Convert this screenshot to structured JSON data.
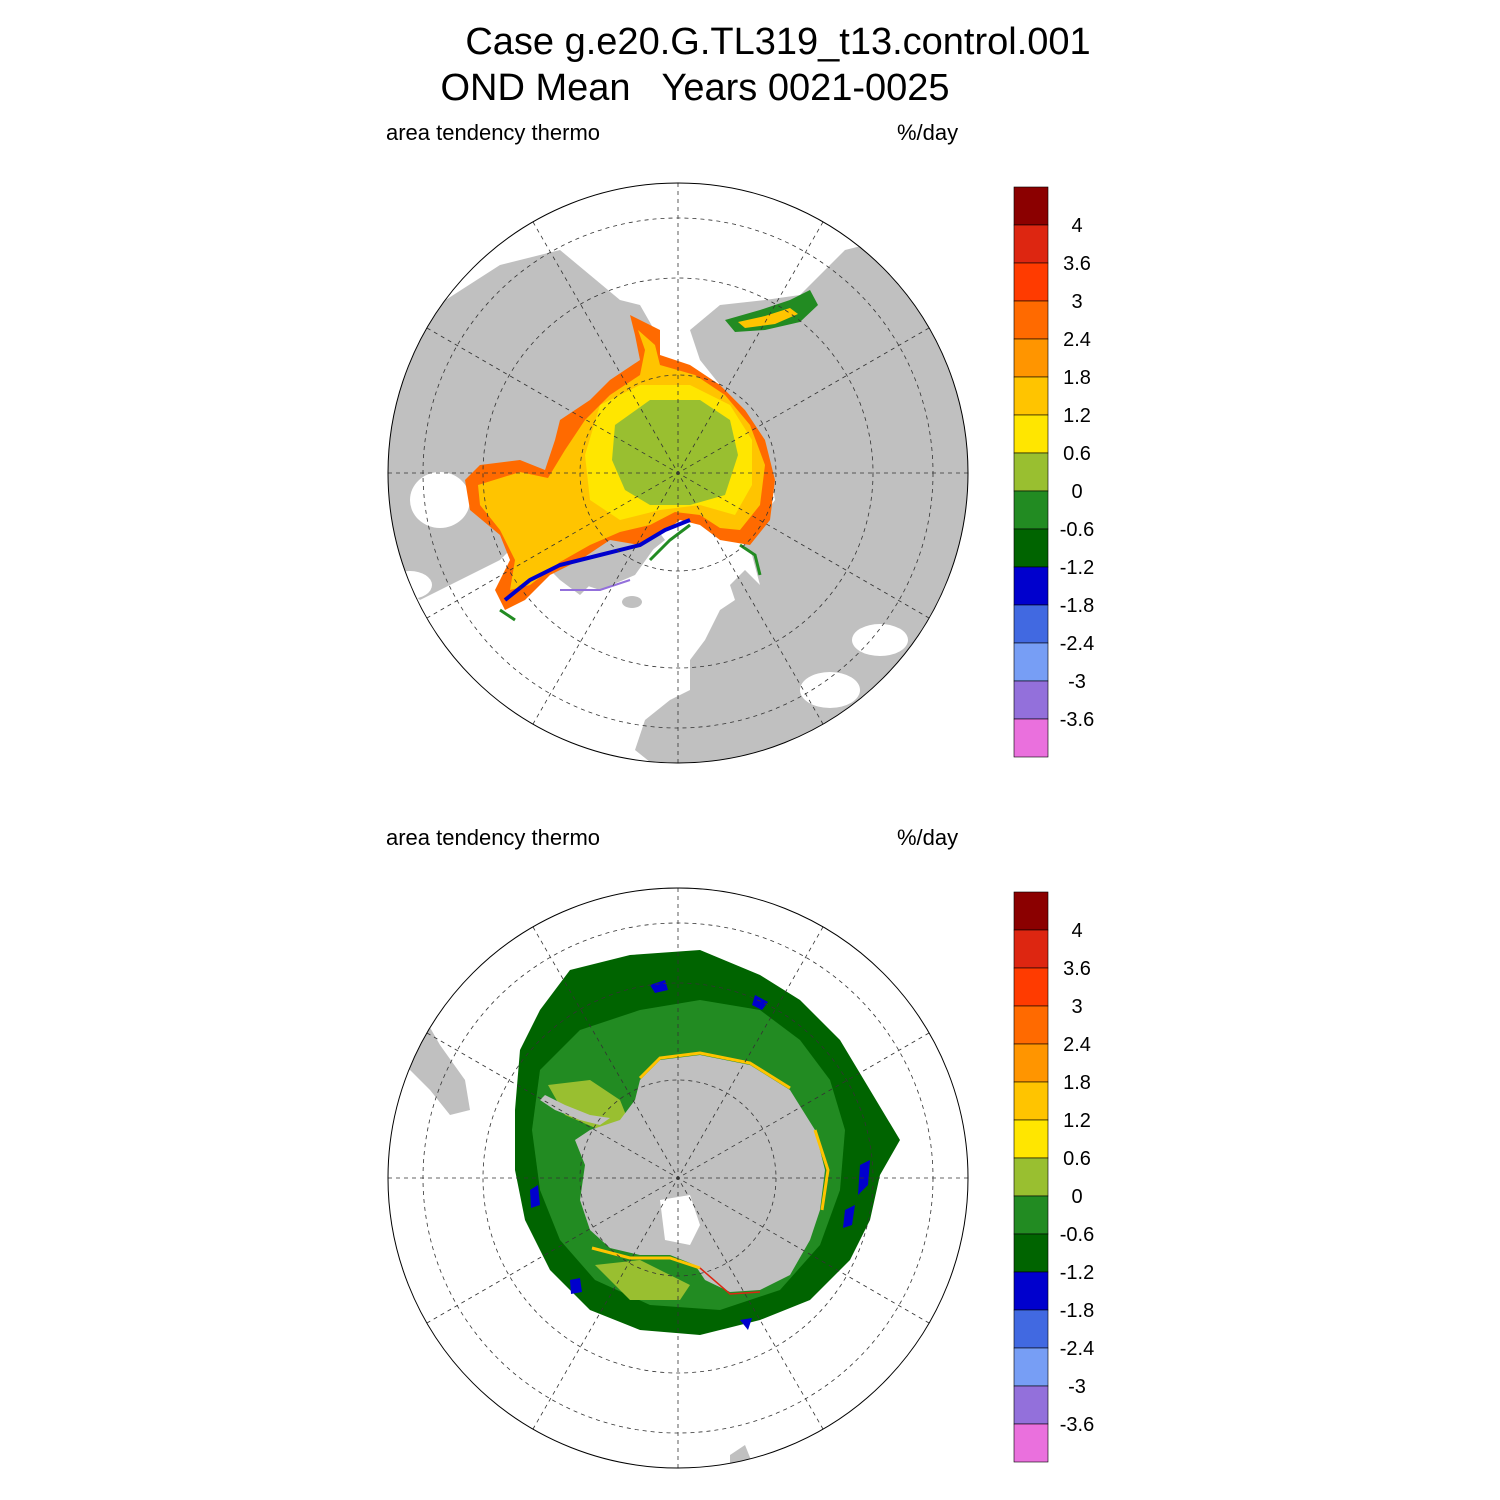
{
  "title": {
    "line1": "Case g.e20.G.TL319_t13.control.001",
    "line2": "OND Mean   Years 0021-0025"
  },
  "panels": [
    {
      "id": "north",
      "left_label": "area tendency thermo",
      "right_label": "%/day"
    },
    {
      "id": "south",
      "left_label": "area tendency thermo",
      "right_label": "%/day"
    }
  ],
  "colorbar": {
    "unit": "%/day",
    "colors": [
      "#8b0000",
      "#dd2611",
      "#ff3b00",
      "#ff6a00",
      "#ff9500",
      "#ffc400",
      "#ffe600",
      "#99bf30",
      "#228b22",
      "#006400",
      "#0000cd",
      "#4169e1",
      "#779ef5",
      "#9370db",
      "#ea70dd"
    ],
    "labels": [
      "4",
      "3.6",
      "3",
      "2.4",
      "1.8",
      "1.2",
      "0.6",
      "0",
      "-0.6",
      "-1.2",
      "-1.8",
      "-2.4",
      "-3",
      "-3.6"
    ]
  },
  "colors": {
    "land": "#c0c0c0",
    "ocean": "#ffffff"
  }
}
